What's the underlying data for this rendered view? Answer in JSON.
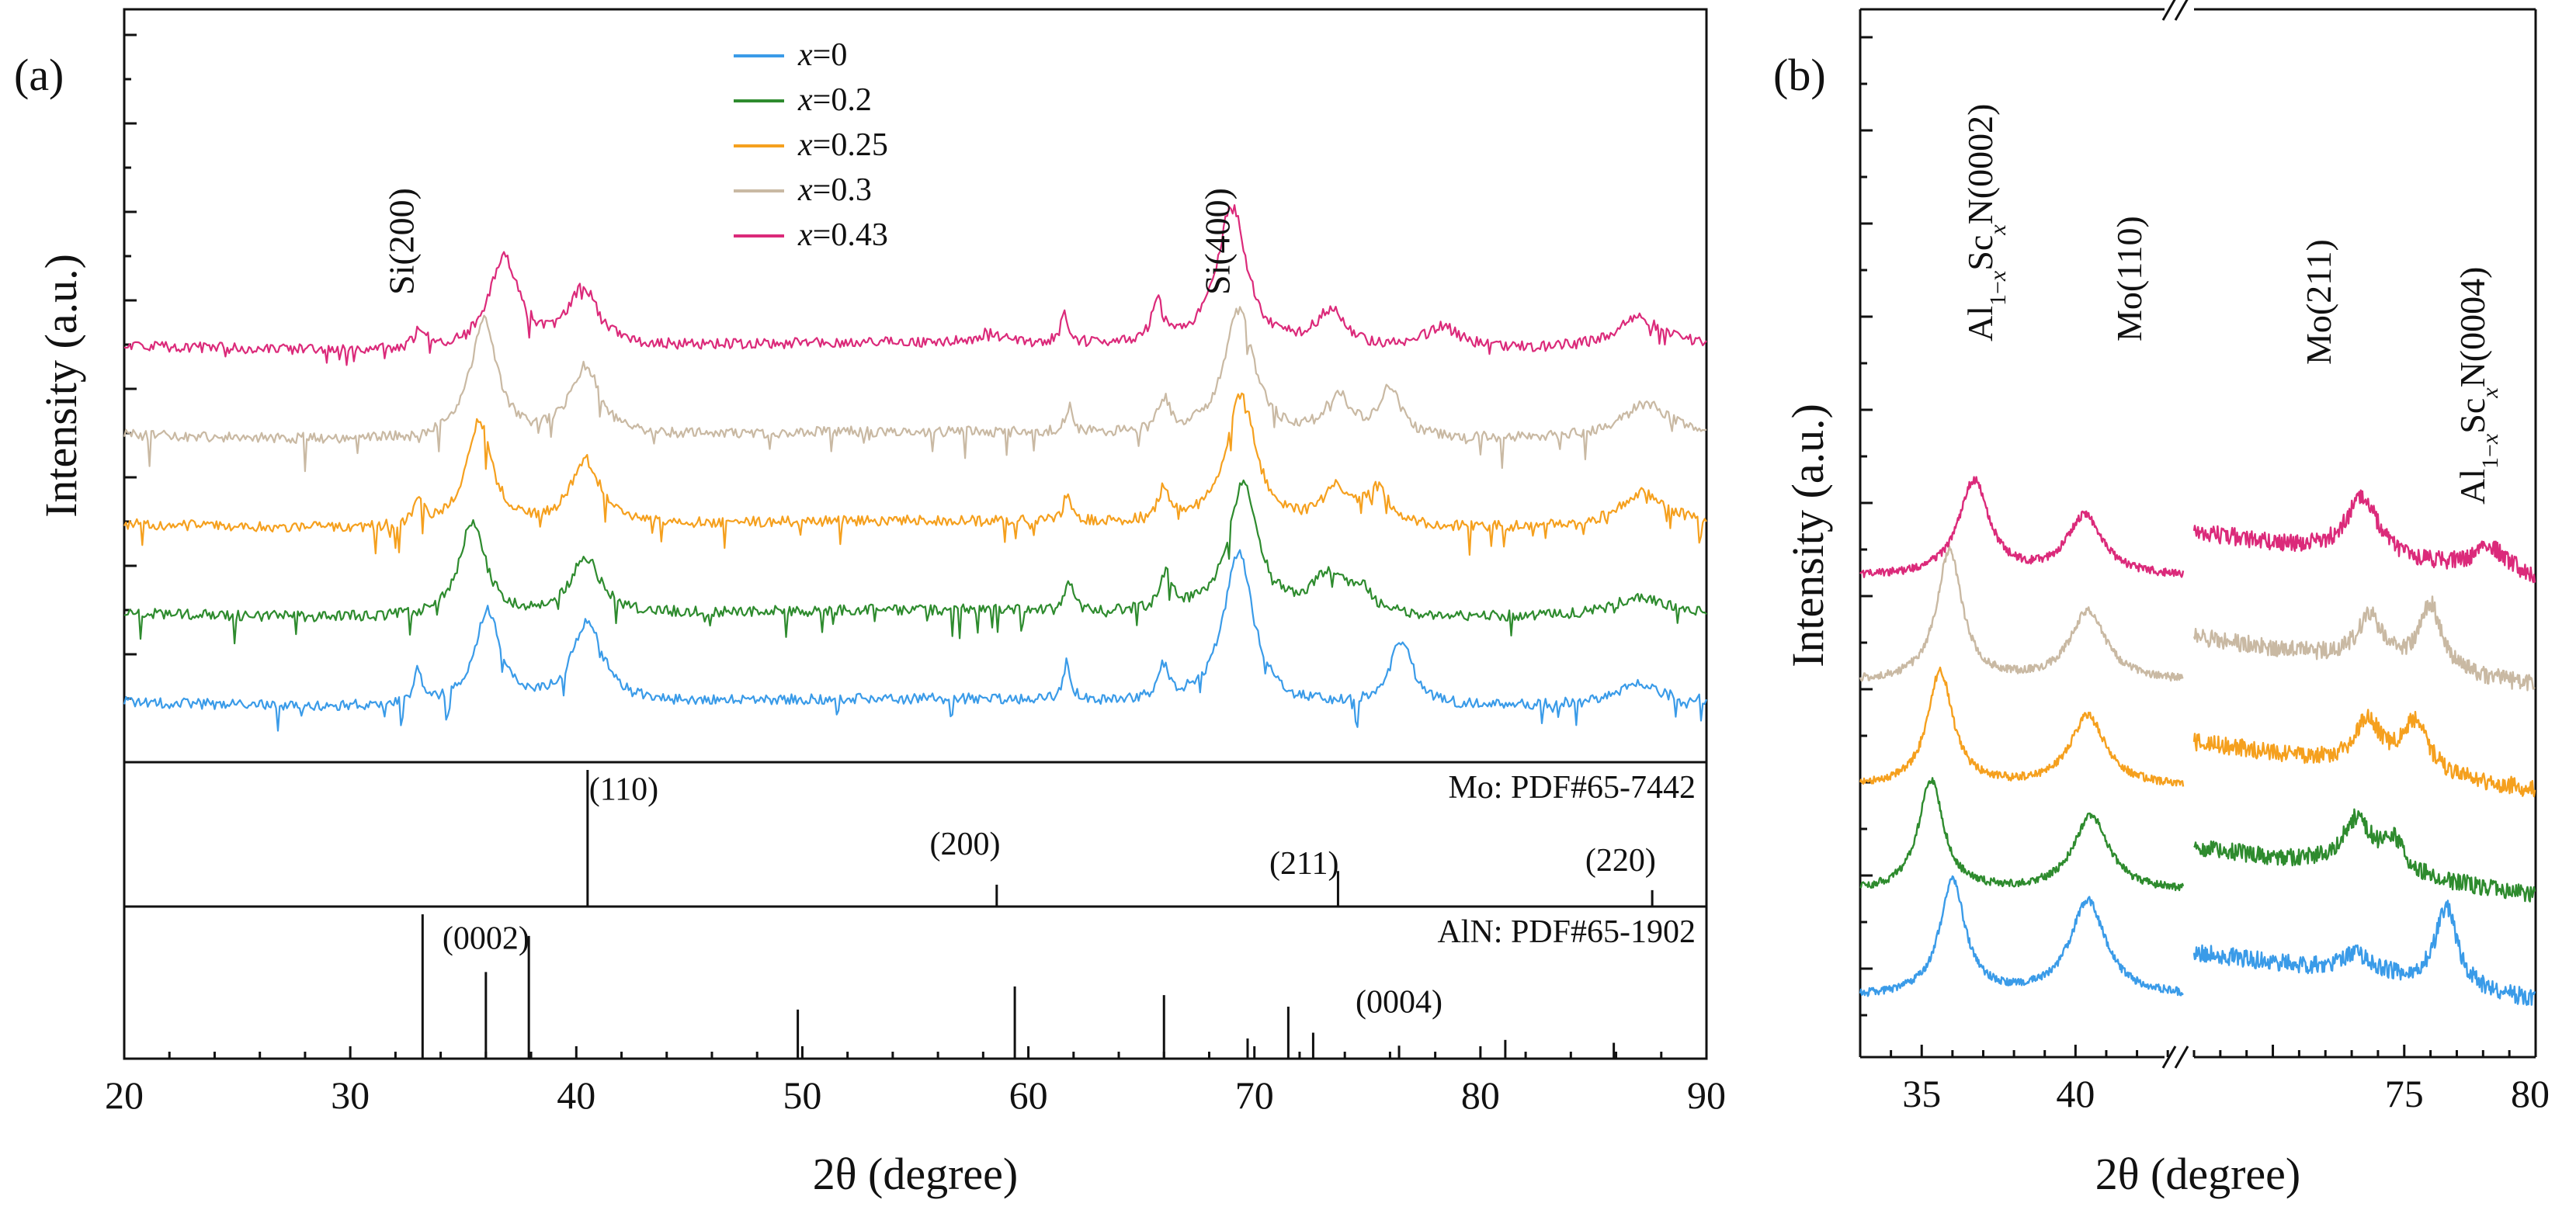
{
  "figure": {
    "panel_a_label": "(a)",
    "panel_b_label": "(b)"
  },
  "chart_data": [
    {
      "id": "panel-a-xrd",
      "type": "line",
      "title": "",
      "xlabel": "2θ (degree)",
      "ylabel": "Intensity (a.u.)",
      "xlim": [
        20,
        90
      ],
      "xticks": [
        "20",
        "30",
        "40",
        "50",
        "60",
        "70",
        "80",
        "90"
      ],
      "legend": {
        "position": "top-center",
        "entries": [
          {
            "prefix": "x",
            "text": "=0",
            "color": "#3a9be8"
          },
          {
            "prefix": "x",
            "text": "=0.2",
            "color": "#2e8b2e"
          },
          {
            "prefix": "x",
            "text": "=0.25",
            "color": "#f5a01e"
          },
          {
            "prefix": "x",
            "text": "=0.3",
            "color": "#c9b9a3"
          },
          {
            "prefix": "x",
            "text": "=0.43",
            "color": "#db2a7a"
          }
        ]
      },
      "annotations": [
        {
          "label": "Si(200)",
          "x": 33.0
        },
        {
          "label": "Si(400)",
          "x": 69.1
        }
      ],
      "series": [
        {
          "name": "x=0",
          "color": "#3a9be8",
          "baseline": 0.0,
          "peaks": [
            [
              33.0,
              0.9,
              0.25
            ],
            [
              36.1,
              2.6,
              0.7
            ],
            [
              40.5,
              2.3,
              0.8
            ],
            [
              61.7,
              1.0,
              0.2
            ],
            [
              66.0,
              0.9,
              0.25
            ],
            [
              69.3,
              4.2,
              0.8
            ],
            [
              76.5,
              1.8,
              0.6
            ],
            [
              87.0,
              0.6,
              1.0
            ]
          ]
        },
        {
          "name": "x=0.2",
          "color": "#2e8b2e",
          "baseline": 1.35,
          "peaks": [
            [
              35.4,
              2.6,
              0.7
            ],
            [
              40.4,
              1.6,
              0.8
            ],
            [
              61.8,
              0.8,
              0.2
            ],
            [
              66.1,
              1.0,
              0.3
            ],
            [
              69.5,
              3.6,
              0.8
            ],
            [
              73.3,
              1.1,
              0.9
            ],
            [
              74.7,
              0.6,
              0.6
            ],
            [
              87.0,
              0.5,
              1.2
            ]
          ]
        },
        {
          "name": "x=0.25",
          "color": "#f5a01e",
          "baseline": 2.7,
          "peaks": [
            [
              33.0,
              0.6,
              0.3
            ],
            [
              35.7,
              2.9,
              0.7
            ],
            [
              40.4,
              1.8,
              0.8
            ],
            [
              61.7,
              0.7,
              0.2
            ],
            [
              66.0,
              0.9,
              0.3
            ],
            [
              69.4,
              3.6,
              0.8
            ],
            [
              73.6,
              1.0,
              0.7
            ],
            [
              75.4,
              1.0,
              0.7
            ],
            [
              87.2,
              0.9,
              1.2
            ]
          ]
        },
        {
          "name": "x=0.3",
          "color": "#c9b9a3",
          "baseline": 4.05,
          "peaks": [
            [
              35.9,
              3.3,
              0.7
            ],
            [
              40.4,
              1.9,
              0.8
            ],
            [
              61.8,
              0.7,
              0.2
            ],
            [
              66.0,
              0.9,
              0.3
            ],
            [
              69.3,
              3.5,
              0.8
            ],
            [
              73.7,
              1.1,
              0.7
            ],
            [
              76.0,
              1.3,
              0.6
            ],
            [
              87.3,
              0.9,
              1.2
            ]
          ]
        },
        {
          "name": "x=0.43",
          "color": "#db2a7a",
          "baseline": 5.4,
          "peaks": [
            [
              33.1,
              0.5,
              0.3
            ],
            [
              36.8,
              2.5,
              0.8
            ],
            [
              40.3,
              1.6,
              0.8
            ],
            [
              58.3,
              0.3,
              0.5
            ],
            [
              61.6,
              0.8,
              0.2
            ],
            [
              65.7,
              1.1,
              0.3
            ],
            [
              69.0,
              3.9,
              0.8
            ],
            [
              73.4,
              1.0,
              0.8
            ],
            [
              78.3,
              0.6,
              1.0
            ],
            [
              87.0,
              0.8,
              1.2
            ]
          ]
        }
      ]
    },
    {
      "id": "mo-reference",
      "type": "bar",
      "title": "Mo: PDF#65-7442",
      "xlim": [
        20,
        90
      ],
      "sticks": [
        {
          "x": 40.5,
          "h": 1.0,
          "label": "(110)",
          "label_x": 42.1,
          "label_y": 0.78
        },
        {
          "x": 58.6,
          "h": 0.16,
          "label": "(200)",
          "label_x": 57.2,
          "label_y": 0.38
        },
        {
          "x": 73.7,
          "h": 0.26,
          "label": "(211)",
          "label_x": 72.2,
          "label_y": 0.24
        },
        {
          "x": 87.6,
          "h": 0.12,
          "label": "(220)",
          "label_x": 86.2,
          "label_y": 0.26
        }
      ]
    },
    {
      "id": "aln-reference",
      "type": "bar",
      "title": "AlN: PDF#65-1902",
      "xlim": [
        20,
        90
      ],
      "sticks": [
        {
          "x": 33.2,
          "h": 1.0,
          "label": "",
          "label_x": 0,
          "label_y": 0
        },
        {
          "x": 36.0,
          "h": 0.6,
          "label": "(0002)",
          "label_x": 36.0,
          "label_y": 0.76
        },
        {
          "x": 37.9,
          "h": 0.85,
          "label": "",
          "label_x": 0,
          "label_y": 0
        },
        {
          "x": 49.8,
          "h": 0.34,
          "label": "",
          "label_x": 0,
          "label_y": 0
        },
        {
          "x": 59.4,
          "h": 0.5,
          "label": "",
          "label_x": 0,
          "label_y": 0
        },
        {
          "x": 66.0,
          "h": 0.44,
          "label": "",
          "label_x": 0,
          "label_y": 0
        },
        {
          "x": 69.7,
          "h": 0.14,
          "label": "",
          "label_x": 0,
          "label_y": 0
        },
        {
          "x": 71.5,
          "h": 0.36,
          "label": "",
          "label_x": 0,
          "label_y": 0
        },
        {
          "x": 72.6,
          "h": 0.18,
          "label": "",
          "label_x": 0,
          "label_y": 0
        },
        {
          "x": 76.4,
          "h": 0.09,
          "label": "(0004)",
          "label_x": 76.4,
          "label_y": 0.32
        },
        {
          "x": 81.1,
          "h": 0.13,
          "label": "",
          "label_x": 0,
          "label_y": 0
        },
        {
          "x": 85.9,
          "h": 0.11,
          "label": "",
          "label_x": 0,
          "label_y": 0
        }
      ]
    },
    {
      "id": "panel-b-xrd-zoom",
      "type": "line",
      "title": "",
      "xlabel": "2θ (degree)",
      "ylabel": "Intensity (a.u.)",
      "broken_axis": true,
      "segments": [
        {
          "xlim": [
            33,
            43.5
          ],
          "xticks": [
            "35",
            "40"
          ]
        },
        {
          "xlim": [
            67,
            80
          ],
          "xticks": [
            "75",
            "80"
          ]
        }
      ],
      "annotations": [
        {
          "label": "Al1−xScxN(0002)",
          "segment": 0,
          "x": 35.6
        },
        {
          "label": "Mo(110)",
          "segment": 0,
          "x": 40.5
        },
        {
          "label": "Mo(211)",
          "segment": 1,
          "x": 73.5
        },
        {
          "label": "Al1−xScxN(0004)",
          "segment": 1,
          "x": 78.6
        }
      ],
      "series": [
        {
          "name": "x=0",
          "color": "#3a9be8",
          "baseline": 0.0,
          "peaks": [
            [
              36.0,
              2.3,
              0.5
            ],
            [
              40.4,
              1.9,
              0.7
            ],
            [
              73.2,
              0.4,
              0.8
            ],
            [
              76.6,
              1.6,
              0.5
            ]
          ]
        },
        {
          "name": "x=0.2",
          "color": "#2e8b2e",
          "baseline": 1.3,
          "peaks": [
            [
              35.3,
              2.2,
              0.5
            ],
            [
              40.5,
              1.5,
              0.7
            ],
            [
              73.2,
              1.0,
              0.7
            ],
            [
              74.6,
              0.6,
              0.5
            ]
          ]
        },
        {
          "name": "x=0.25",
          "color": "#f5a01e",
          "baseline": 2.6,
          "peaks": [
            [
              35.6,
              2.3,
              0.5
            ],
            [
              40.4,
              1.4,
              0.7
            ],
            [
              73.6,
              0.9,
              0.6
            ],
            [
              75.4,
              1.0,
              0.6
            ]
          ]
        },
        {
          "name": "x=0.3",
          "color": "#c9b9a3",
          "baseline": 3.9,
          "peaks": [
            [
              35.9,
              2.6,
              0.5
            ],
            [
              40.4,
              1.4,
              0.7
            ],
            [
              73.7,
              0.9,
              0.6
            ],
            [
              76.0,
              1.3,
              0.5
            ]
          ]
        },
        {
          "name": "x=0.43",
          "color": "#db2a7a",
          "baseline": 5.2,
          "peaks": [
            [
              36.7,
              1.9,
              0.6
            ],
            [
              40.3,
              1.2,
              0.7
            ],
            [
              73.4,
              1.2,
              0.7
            ],
            [
              78.3,
              0.5,
              0.9
            ]
          ]
        }
      ]
    }
  ]
}
